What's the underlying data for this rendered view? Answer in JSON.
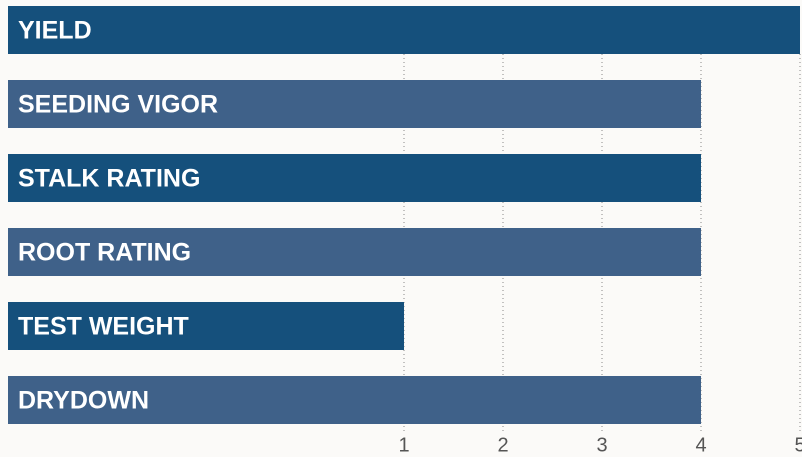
{
  "chart_data": {
    "type": "bar",
    "orientation": "horizontal",
    "categories": [
      "YIELD",
      "SEEDING VIGOR",
      "STALK RATING",
      "ROOT RATING",
      "TEST WEIGHT",
      "DRYDOWN"
    ],
    "values": [
      5,
      4,
      4,
      4,
      1,
      4
    ],
    "colors": [
      "#15507c",
      "#3f6189",
      "#15507c",
      "#3f6189",
      "#15507c",
      "#3f6189"
    ],
    "xlim": [
      -3,
      5
    ],
    "xticks": [
      1,
      2,
      3,
      4,
      5
    ],
    "grid": true
  }
}
